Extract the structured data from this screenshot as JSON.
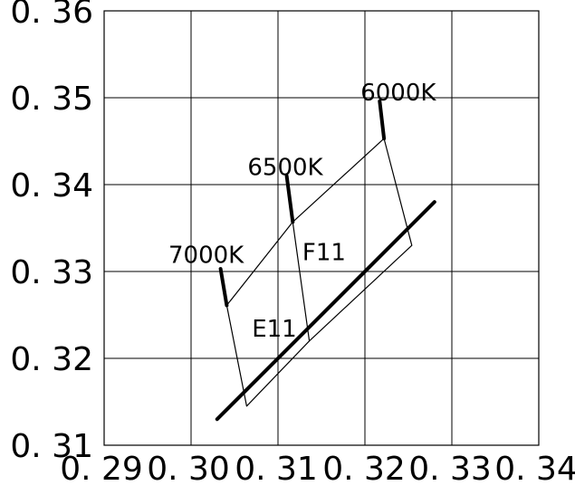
{
  "chart_data": {
    "type": "line",
    "title": "",
    "xlabel": "",
    "ylabel": "",
    "xlim": [
      0.29,
      0.34
    ],
    "ylim": [
      0.31,
      0.36
    ],
    "grid": true,
    "x_ticks": [
      "0. 29",
      "0. 30",
      "0. 31",
      "0. 32",
      "0. 33",
      "0. 34"
    ],
    "y_ticks": [
      "0. 36",
      "0. 35",
      "0. 34",
      "0. 33",
      "0. 32",
      "0. 31"
    ],
    "series": [
      {
        "name": "",
        "style": "thick",
        "x": [
          0.303,
          0.328
        ],
        "y": [
          0.313,
          0.338
        ]
      },
      {
        "name": "",
        "style": "thick",
        "x": [
          0.3034,
          0.3041
        ],
        "y": [
          0.3303,
          0.3261
        ]
      },
      {
        "name": "",
        "style": "thick",
        "x": [
          0.311,
          0.3117
        ],
        "y": [
          0.341,
          0.3357
        ]
      },
      {
        "name": "",
        "style": "thick",
        "x": [
          0.3217,
          0.3222
        ],
        "y": [
          0.3496,
          0.3453
        ]
      },
      {
        "name": "",
        "style": "thin",
        "x": [
          0.3041,
          0.3117,
          0.3222,
          0.3254,
          0.3136,
          0.3064,
          0.3041
        ],
        "y": [
          0.3261,
          0.3357,
          0.3453,
          0.333,
          0.322,
          0.3145,
          0.3261
        ]
      },
      {
        "name": "",
        "style": "thin",
        "x": [
          0.3117,
          0.3136
        ],
        "y": [
          0.3357,
          0.322
        ]
      }
    ],
    "annotations": [
      {
        "text": "6000K",
        "x": 0.3195,
        "y": 0.3497
      },
      {
        "text": "6500K",
        "x": 0.3065,
        "y": 0.3411
      },
      {
        "text": "7000K",
        "x": 0.2974,
        "y": 0.331
      },
      {
        "text": "F11",
        "x": 0.3128,
        "y": 0.3313
      },
      {
        "text": "E11",
        "x": 0.307,
        "y": 0.3225
      }
    ],
    "legend": "none"
  }
}
